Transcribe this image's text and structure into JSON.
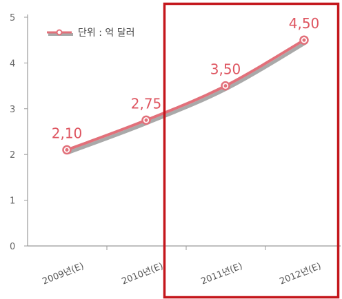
{
  "chart_data": {
    "type": "line",
    "categories": [
      "2009년(E)",
      "2010년(E)",
      "2011년(E)",
      "2012년(E)"
    ],
    "series": [
      {
        "name": "단위 : 억 달러",
        "values": [
          2.1,
          2.75,
          3.5,
          4.5
        ]
      }
    ],
    "data_labels": [
      "2,10",
      "2,75",
      "3,50",
      "4,50"
    ],
    "yticks": [
      "0",
      "1",
      "2",
      "3",
      "4",
      "5"
    ],
    "ylim": [
      0,
      5
    ],
    "grid": false,
    "legend_position": "top-left",
    "highlight": {
      "from_category": "2011년(E)",
      "to_category": "2012년(E)",
      "color": "#c4161c"
    },
    "colors": {
      "line": "#e2707a",
      "shadow": "#8c8c8c",
      "label": "#de5560",
      "axis": "#999999"
    }
  }
}
